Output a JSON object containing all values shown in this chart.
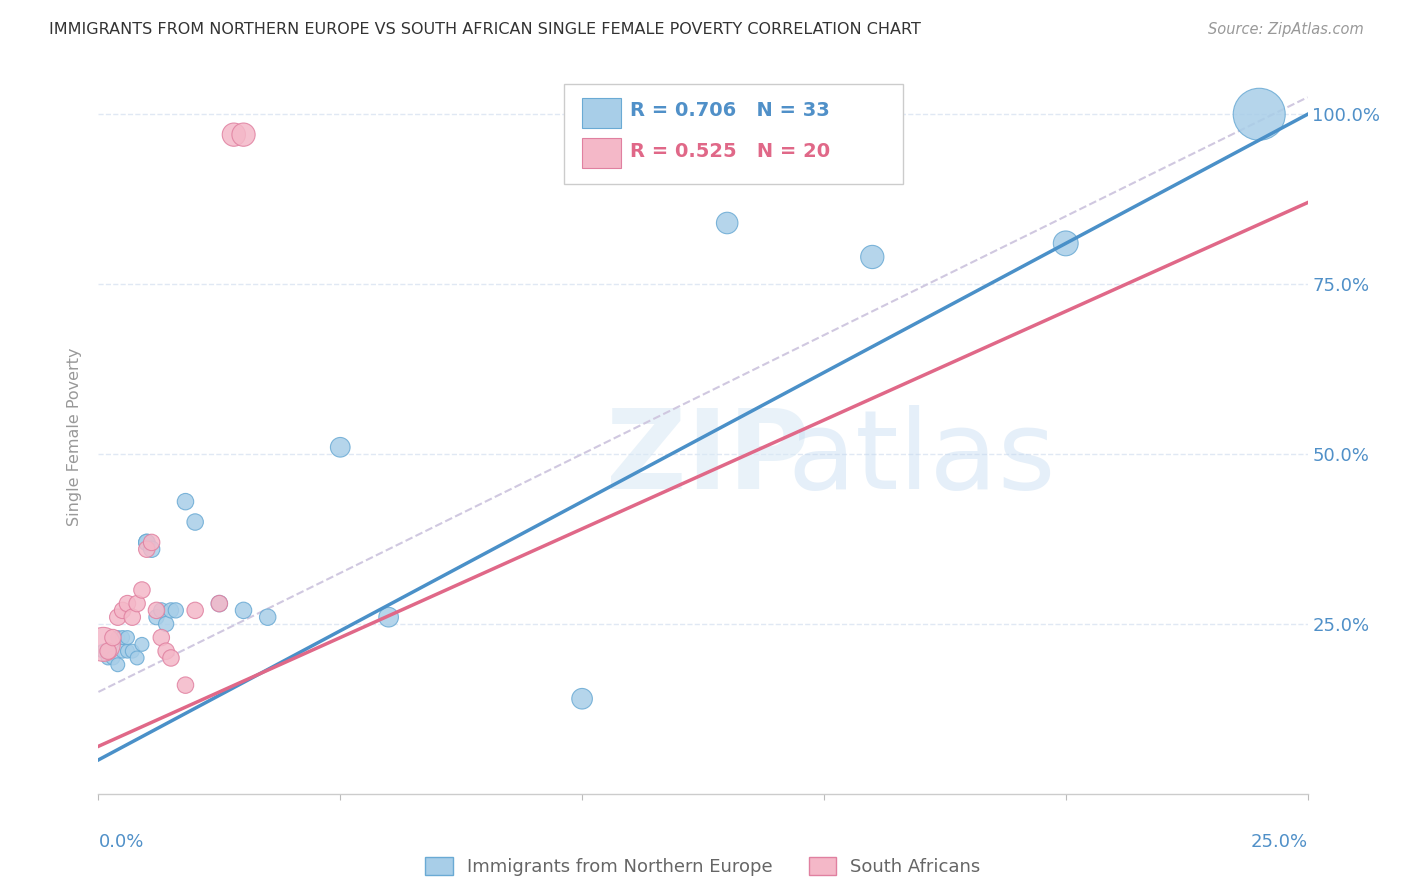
{
  "title": "IMMIGRANTS FROM NORTHERN EUROPE VS SOUTH AFRICAN SINGLE FEMALE POVERTY CORRELATION CHART",
  "source": "Source: ZipAtlas.com",
  "ylabel": "Single Female Poverty",
  "watermark_zip": "ZIP",
  "watermark_atlas": "atlas",
  "xlim": [
    0.0,
    0.25
  ],
  "ylim": [
    0.0,
    1.05
  ],
  "yticks": [
    0.25,
    0.5,
    0.75,
    1.0
  ],
  "ytick_labels": [
    "25.0%",
    "50.0%",
    "75.0%",
    "100.0%"
  ],
  "blue_color": "#A8CEE8",
  "blue_edge_color": "#6AAAD4",
  "blue_line_color": "#4A90C8",
  "pink_color": "#F4B8C8",
  "pink_edge_color": "#E080A0",
  "pink_line_color": "#E06888",
  "dash_color": "#D0C8E0",
  "text_color": "#5090C8",
  "grid_color": "#E0E8F4",
  "legend_blue_R": "0.706",
  "legend_blue_N": "33",
  "legend_pink_R": "0.525",
  "legend_pink_N": "20",
  "blue_slope": 3.8,
  "blue_intercept": 0.05,
  "pink_slope": 3.2,
  "pink_intercept": 0.07,
  "dash_slope": 3.5,
  "dash_intercept": 0.15,
  "blue_x": [
    0.001,
    0.002,
    0.002,
    0.003,
    0.004,
    0.004,
    0.005,
    0.005,
    0.006,
    0.006,
    0.007,
    0.008,
    0.009,
    0.01,
    0.01,
    0.011,
    0.012,
    0.013,
    0.014,
    0.015,
    0.016,
    0.018,
    0.02,
    0.025,
    0.03,
    0.035,
    0.05,
    0.06,
    0.1,
    0.13,
    0.16,
    0.2,
    0.24
  ],
  "blue_y": [
    0.21,
    0.2,
    0.21,
    0.2,
    0.19,
    0.23,
    0.21,
    0.23,
    0.21,
    0.23,
    0.21,
    0.2,
    0.22,
    0.37,
    0.37,
    0.36,
    0.26,
    0.27,
    0.25,
    0.27,
    0.27,
    0.43,
    0.4,
    0.28,
    0.27,
    0.26,
    0.51,
    0.26,
    0.14,
    0.84,
    0.79,
    0.81,
    1.0
  ],
  "blue_s": [
    25,
    25,
    25,
    25,
    25,
    25,
    25,
    25,
    25,
    25,
    25,
    25,
    25,
    35,
    35,
    35,
    30,
    30,
    30,
    30,
    30,
    35,
    35,
    35,
    35,
    35,
    50,
    50,
    55,
    60,
    70,
    80,
    350
  ],
  "pink_x": [
    0.001,
    0.002,
    0.003,
    0.004,
    0.005,
    0.006,
    0.007,
    0.008,
    0.009,
    0.01,
    0.011,
    0.012,
    0.013,
    0.014,
    0.015,
    0.018,
    0.02,
    0.025,
    0.028,
    0.03
  ],
  "pink_y": [
    0.22,
    0.21,
    0.23,
    0.26,
    0.27,
    0.28,
    0.26,
    0.28,
    0.3,
    0.36,
    0.37,
    0.27,
    0.23,
    0.21,
    0.2,
    0.16,
    0.27,
    0.28,
    0.97,
    0.97
  ],
  "pink_s": [
    150,
    35,
    35,
    35,
    35,
    35,
    35,
    35,
    35,
    35,
    35,
    35,
    35,
    35,
    35,
    35,
    35,
    35,
    70,
    70
  ]
}
